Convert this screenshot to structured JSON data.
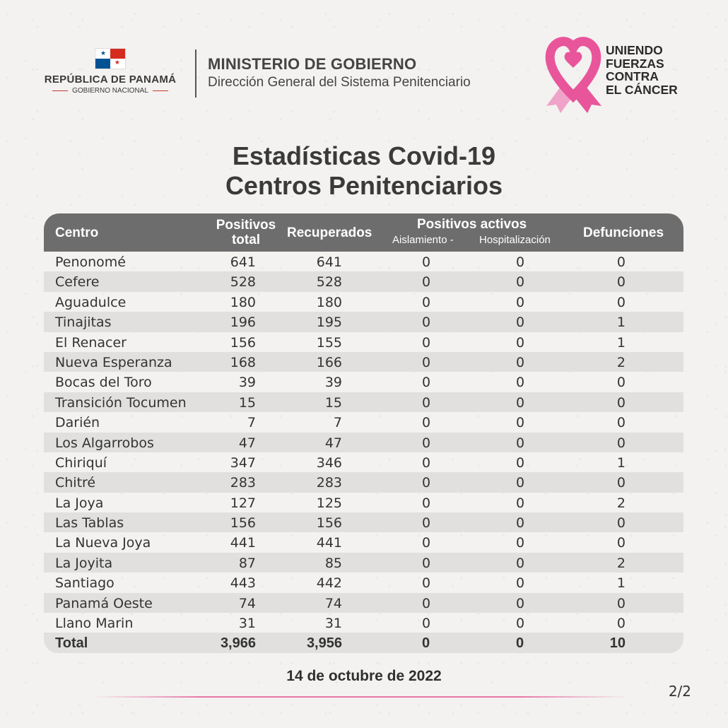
{
  "header": {
    "country": "REPÚBLICA DE PANAMÁ",
    "government": "GOBIERNO NACIONAL",
    "ministry": "MINISTERIO DE GOBIERNO",
    "direction": "Dirección General del Sistema Penitenciario",
    "campaign": [
      "UNIENDO",
      "FUERZAS",
      "CONTRA",
      "EL CÁNCER"
    ],
    "campaign_color": "#e8559a"
  },
  "title": [
    "Estadísticas Covid-19",
    "Centros Penitenciarios"
  ],
  "table": {
    "headers": {
      "centro": "Centro",
      "positivos_total": [
        "Positivos",
        "total"
      ],
      "recuperados": "Recuperados",
      "positivos_activos": "Positivos activos",
      "aislamiento": "Aislamiento -",
      "hospitalizacion": "Hospitalización",
      "defunciones": "Defunciones"
    },
    "rows": [
      {
        "centro": "Penonomé",
        "positivos": "641",
        "recuperados": "641",
        "aislamiento": "0",
        "hospitalizacion": "0",
        "defunciones": "0"
      },
      {
        "centro": "Cefere",
        "positivos": "528",
        "recuperados": "528",
        "aislamiento": "0",
        "hospitalizacion": "0",
        "defunciones": "0"
      },
      {
        "centro": "Aguadulce",
        "positivos": "180",
        "recuperados": "180",
        "aislamiento": "0",
        "hospitalizacion": "0",
        "defunciones": "0"
      },
      {
        "centro": "Tinajitas",
        "positivos": "196",
        "recuperados": "195",
        "aislamiento": "0",
        "hospitalizacion": "0",
        "defunciones": "1"
      },
      {
        "centro": "El Renacer",
        "positivos": "156",
        "recuperados": "155",
        "aislamiento": "0",
        "hospitalizacion": "0",
        "defunciones": "1"
      },
      {
        "centro": "Nueva Esperanza",
        "positivos": "168",
        "recuperados": "166",
        "aislamiento": "0",
        "hospitalizacion": "0",
        "defunciones": "2"
      },
      {
        "centro": "Bocas del Toro",
        "positivos": "39",
        "recuperados": "39",
        "aislamiento": "0",
        "hospitalizacion": "0",
        "defunciones": "0"
      },
      {
        "centro": "Transición Tocumen",
        "positivos": "15",
        "recuperados": "15",
        "aislamiento": "0",
        "hospitalizacion": "0",
        "defunciones": "0"
      },
      {
        "centro": "Darién",
        "positivos": "7",
        "recuperados": "7",
        "aislamiento": "0",
        "hospitalizacion": "0",
        "defunciones": "0"
      },
      {
        "centro": "Los Algarrobos",
        "positivos": "47",
        "recuperados": "47",
        "aislamiento": "0",
        "hospitalizacion": "0",
        "defunciones": "0"
      },
      {
        "centro": "Chiriquí",
        "positivos": "347",
        "recuperados": "346",
        "aislamiento": "0",
        "hospitalizacion": "0",
        "defunciones": "1"
      },
      {
        "centro": "Chitré",
        "positivos": "283",
        "recuperados": "283",
        "aislamiento": "0",
        "hospitalizacion": "0",
        "defunciones": "0"
      },
      {
        "centro": "La Joya",
        "positivos": "127",
        "recuperados": "125",
        "aislamiento": "0",
        "hospitalizacion": "0",
        "defunciones": "2"
      },
      {
        "centro": "Las Tablas",
        "positivos": "156",
        "recuperados": "156",
        "aislamiento": "0",
        "hospitalizacion": "0",
        "defunciones": "0"
      },
      {
        "centro": "La Nueva Joya",
        "positivos": "441",
        "recuperados": "441",
        "aislamiento": "0",
        "hospitalizacion": "0",
        "defunciones": "0"
      },
      {
        "centro": "La Joyita",
        "positivos": "87",
        "recuperados": "85",
        "aislamiento": "0",
        "hospitalizacion": "0",
        "defunciones": "2"
      },
      {
        "centro": "Santiago",
        "positivos": "443",
        "recuperados": "442",
        "aislamiento": "0",
        "hospitalizacion": "0",
        "defunciones": "1"
      },
      {
        "centro": "Panamá Oeste",
        "positivos": "74",
        "recuperados": "74",
        "aislamiento": "0",
        "hospitalizacion": "0",
        "defunciones": "0"
      },
      {
        "centro": "Llano Marin",
        "positivos": "31",
        "recuperados": "31",
        "aislamiento": "0",
        "hospitalizacion": "0",
        "defunciones": "0"
      }
    ],
    "total": {
      "centro": "Total",
      "positivos": "3,966",
      "recuperados": "3,956",
      "aislamiento": "0",
      "hospitalizacion": "0",
      "defunciones": "10"
    }
  },
  "date": "14 de octubre de 2022",
  "page_indicator": "2/2"
}
